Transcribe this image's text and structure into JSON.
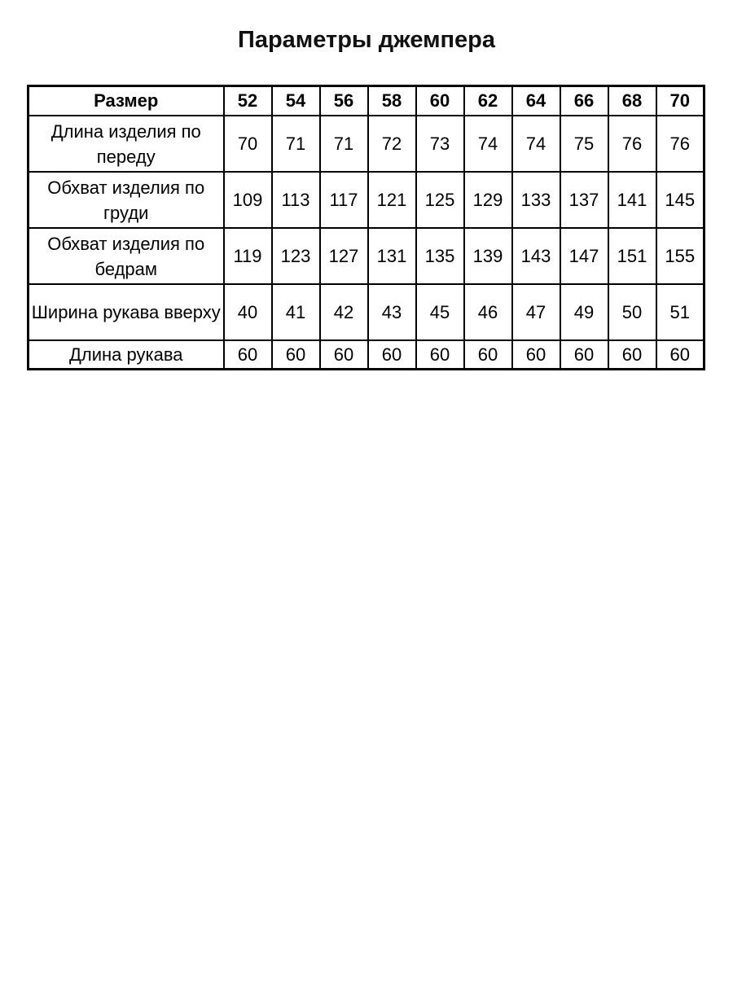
{
  "title": "Параметры джемпера",
  "table": {
    "header": {
      "label": "Размер",
      "sizes": [
        "52",
        "54",
        "56",
        "58",
        "60",
        "62",
        "64",
        "66",
        "68",
        "70"
      ]
    },
    "rows": [
      {
        "label": "Длина изделия по переду",
        "values": [
          "70",
          "71",
          "71",
          "72",
          "73",
          "74",
          "74",
          "75",
          "76",
          "76"
        ]
      },
      {
        "label": "Обхват изделия по груди",
        "values": [
          "109",
          "113",
          "117",
          "121",
          "125",
          "129",
          "133",
          "137",
          "141",
          "145"
        ]
      },
      {
        "label": "Обхват изделия по бедрам",
        "values": [
          "119",
          "123",
          "127",
          "131",
          "135",
          "139",
          "143",
          "147",
          "151",
          "155"
        ]
      },
      {
        "label": "Ширина рукава вверху",
        "values": [
          "40",
          "41",
          "42",
          "43",
          "45",
          "46",
          "47",
          "49",
          "50",
          "51"
        ]
      },
      {
        "label": "Длина рукава",
        "values": [
          "60",
          "60",
          "60",
          "60",
          "60",
          "60",
          "60",
          "60",
          "60",
          "60"
        ]
      }
    ]
  },
  "chart_data": {
    "type": "table",
    "title": "Параметры джемпера",
    "columns": [
      "Размер",
      "52",
      "54",
      "56",
      "58",
      "60",
      "62",
      "64",
      "66",
      "68",
      "70"
    ],
    "rows": [
      [
        "Длина изделия по переду",
        70,
        71,
        71,
        72,
        73,
        74,
        74,
        75,
        76,
        76
      ],
      [
        "Обхват изделия по груди",
        109,
        113,
        117,
        121,
        125,
        129,
        133,
        137,
        141,
        145
      ],
      [
        "Обхват изделия по бедрам",
        119,
        123,
        127,
        131,
        135,
        139,
        143,
        147,
        151,
        155
      ],
      [
        "Ширина рукава вверху",
        40,
        41,
        42,
        43,
        45,
        46,
        47,
        49,
        50,
        51
      ],
      [
        "Длина рукава",
        60,
        60,
        60,
        60,
        60,
        60,
        60,
        60,
        60,
        60
      ]
    ]
  }
}
